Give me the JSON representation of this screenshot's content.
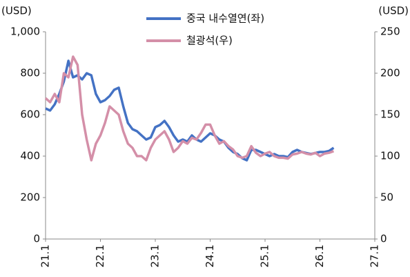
{
  "chart_data": {
    "type": "line",
    "y_label": "(USD)",
    "y2_label": "(USD)",
    "x": [
      "21.1",
      "21.2",
      "21.3",
      "21.4",
      "21.5",
      "21.6",
      "21.7",
      "21.8",
      "21.9",
      "21.10",
      "21.11",
      "21.12",
      "22.1",
      "22.2",
      "22.3",
      "22.4",
      "22.5",
      "22.6",
      "22.7",
      "22.8",
      "22.9",
      "22.10",
      "22.11",
      "22.12",
      "23.1",
      "23.2",
      "23.3",
      "23.4",
      "23.5",
      "23.6",
      "23.7",
      "23.8",
      "23.9",
      "23.10",
      "23.11",
      "23.12",
      "24.1",
      "24.2",
      "24.3",
      "24.4",
      "24.5",
      "24.6",
      "24.7",
      "24.8",
      "24.9",
      "24.10",
      "24.11",
      "24.12",
      "25.1",
      "25.2",
      "25.3",
      "25.4",
      "25.5",
      "25.6",
      "25.7",
      "25.8",
      "25.9",
      "25.10",
      "25.11",
      "25.12",
      "26.1",
      "26.2",
      "26.3",
      "26.4"
    ],
    "xlim": [
      "21.1",
      "27.1"
    ],
    "xticks": [
      "21.1",
      "22.1",
      "23.1",
      "24.1",
      "25.1",
      "26.1",
      "27.1"
    ],
    "ylim": [
      0,
      1000
    ],
    "yticks": [
      0,
      200,
      400,
      600,
      800,
      {
        "value": 1000,
        "label": "1,000"
      }
    ],
    "y2lim": [
      0,
      250
    ],
    "y2ticks": [
      0,
      50,
      100,
      150,
      200,
      250
    ],
    "series": [
      {
        "name": "중국 내수열연(좌)",
        "color": "#4472c4",
        "values": [
          630,
          620,
          650,
          700,
          760,
          860,
          780,
          790,
          770,
          800,
          790,
          700,
          660,
          670,
          690,
          720,
          730,
          640,
          560,
          530,
          520,
          500,
          480,
          490,
          540,
          550,
          570,
          540,
          500,
          470,
          480,
          470,
          500,
          480,
          470,
          490,
          510,
          500,
          480,
          470,
          440,
          420,
          410,
          390,
          380,
          430,
          430,
          420,
          410,
          400,
          410,
          400,
          400,
          395,
          420,
          430,
          420,
          415,
          410,
          415,
          420,
          420,
          425,
          440
        ]
      },
      {
        "name": "철광석(우)",
        "color": "#d48fa8",
        "axis": "y2",
        "values": [
          170,
          165,
          175,
          165,
          200,
          195,
          220,
          210,
          150,
          120,
          95,
          115,
          125,
          140,
          160,
          155,
          150,
          130,
          115,
          110,
          100,
          100,
          95,
          110,
          120,
          125,
          130,
          120,
          105,
          110,
          118,
          115,
          122,
          120,
          128,
          138,
          138,
          125,
          115,
          118,
          112,
          108,
          100,
          98,
          100,
          112,
          104,
          100,
          103,
          105,
          100,
          98,
          98,
          97,
          102,
          103,
          105,
          103,
          102,
          104,
          100,
          103,
          104,
          106
        ]
      }
    ],
    "legend": "top"
  }
}
